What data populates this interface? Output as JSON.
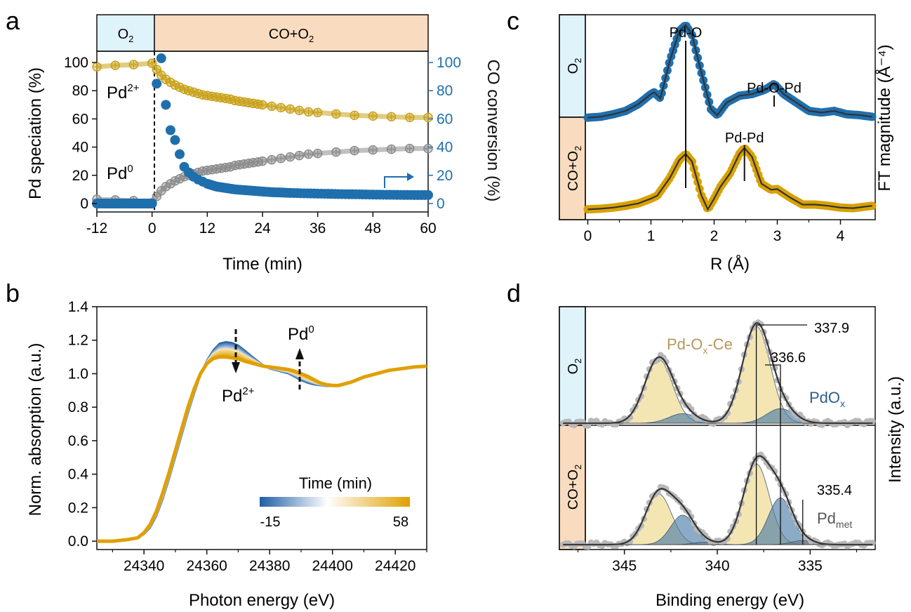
{
  "colors": {
    "o2_fill": "#dff3fb",
    "co_fill": "#f9dcbf",
    "pd2": "#c9a21c",
    "pd0": "#8c8c8c",
    "blue": "#1f6fad",
    "gold": "#d9a100",
    "fit": "#333333",
    "xps_gold": "#f2e2a6",
    "xps_blue": "#4e7ea8",
    "xps_data": "#b8b8b8",
    "cbar_low": "#1f5fa3",
    "cbar_mid": "#ffffff",
    "cbar_high": "#e0a000"
  },
  "chart_data": [
    {
      "panel": "a",
      "type": "line",
      "phase_labels": {
        "o2_main": "O",
        "o2_sub": "2",
        "co_main": "CO+O",
        "co_sub": "2"
      },
      "xlabel": "Time (min)",
      "ylabel_left": "Pd speciation (%)",
      "ylabel_right": "CO conversion (%)",
      "xlim": [
        -12,
        60
      ],
      "ylim_left": [
        -6,
        108
      ],
      "ylim_right": [
        -6,
        108
      ],
      "xticks": [
        -12,
        0,
        12,
        24,
        36,
        48,
        60
      ],
      "yticks_left": [
        0,
        20,
        40,
        60,
        80,
        100
      ],
      "yticks_right": [
        0,
        20,
        40,
        60,
        80,
        100
      ],
      "annotations": {
        "pd2_main": "Pd",
        "pd2_sup": "2+",
        "pd0_main": "Pd",
        "pd0_sup": "0"
      },
      "series": [
        {
          "name": "Pd2+",
          "axis": "left",
          "x": [
            -12,
            -8,
            -4,
            0,
            1,
            2,
            3,
            4,
            5,
            6,
            7,
            8,
            9,
            10,
            11,
            12,
            13,
            14,
            15,
            16,
            17,
            18,
            19,
            20,
            21,
            22,
            23,
            24,
            26,
            28,
            30,
            32,
            34,
            36,
            40,
            44,
            48,
            52,
            56,
            60
          ],
          "y": [
            97,
            98,
            98.5,
            99.5,
            95,
            91,
            88,
            86,
            84,
            82.5,
            81,
            80,
            79,
            78,
            77,
            76.5,
            76,
            75.5,
            75,
            74.5,
            74,
            73,
            72.5,
            72,
            71.5,
            71,
            70.5,
            70,
            69,
            68,
            67,
            66,
            65,
            64.5,
            63.5,
            62.5,
            62,
            61.5,
            61,
            61
          ]
        },
        {
          "name": "Pd0",
          "axis": "left",
          "x": [
            -12,
            -8,
            -4,
            0,
            1,
            2,
            3,
            4,
            5,
            6,
            7,
            8,
            9,
            10,
            11,
            12,
            13,
            14,
            15,
            16,
            17,
            18,
            19,
            20,
            21,
            22,
            23,
            24,
            26,
            28,
            30,
            32,
            34,
            36,
            40,
            44,
            48,
            52,
            56,
            60
          ],
          "y": [
            3,
            2.5,
            2,
            0.5,
            5,
            9,
            12,
            14,
            16,
            17.5,
            19,
            20,
            21,
            22,
            23,
            23.5,
            24,
            24.5,
            25,
            25.5,
            26,
            27,
            27.5,
            28,
            28.5,
            29,
            29.5,
            30,
            31,
            32,
            33,
            34,
            35,
            35.5,
            36.5,
            37.5,
            38,
            38.5,
            39,
            39
          ]
        },
        {
          "name": "CO conversion",
          "axis": "right",
          "x": [
            -12,
            -10,
            -8,
            -6,
            -4,
            -2,
            0,
            1,
            2,
            3,
            4,
            5,
            6,
            7,
            8,
            9,
            10,
            11,
            12,
            13,
            14,
            15,
            16,
            17,
            18,
            20,
            22,
            24,
            26,
            28,
            30,
            33,
            36,
            39,
            42,
            45,
            48,
            51,
            54,
            57,
            60
          ],
          "y": [
            0,
            0,
            0,
            0,
            0,
            0,
            0,
            85,
            103,
            70,
            52,
            45,
            35,
            26,
            22,
            19,
            17,
            15.5,
            14,
            13,
            12,
            11.5,
            11,
            10.5,
            10,
            9.5,
            9,
            8.5,
            8,
            7.8,
            7.5,
            7.2,
            7,
            6.8,
            6.6,
            6.5,
            6.3,
            6.2,
            6.1,
            6,
            6
          ]
        }
      ]
    },
    {
      "panel": "b",
      "type": "line",
      "xlabel": "Photon energy (eV)",
      "ylabel": "Norm. absorption (a.u.)",
      "xlim": [
        24325,
        24430
      ],
      "ylim": [
        -0.05,
        1.4
      ],
      "xticks": [
        24340,
        24360,
        24380,
        24400,
        24420
      ],
      "yticks": [
        0.0,
        0.2,
        0.4,
        0.6,
        0.8,
        1.0,
        1.2,
        1.4
      ],
      "ytick_labels": [
        "0.0",
        "0.2",
        "0.4",
        "0.6",
        "0.8",
        "1.0",
        "1.2",
        "1.4"
      ],
      "annotations": {
        "pd2_main": "Pd",
        "pd2_sup": "2+",
        "pd0_main": "Pd",
        "pd0_sup": "0"
      },
      "colorbar": {
        "title": "Time (min)",
        "min_label": "-15",
        "max_label": "58"
      },
      "spectrum_first": {
        "x": [
          24325,
          24330,
          24335,
          24338,
          24340,
          24342,
          24344,
          24346,
          24348,
          24350,
          24352,
          24354,
          24356,
          24358,
          24360,
          24362,
          24364,
          24366,
          24368,
          24370,
          24372,
          24374,
          24376,
          24378,
          24380,
          24382,
          24384,
          24386,
          24388,
          24390,
          24392,
          24394,
          24396,
          24398,
          24400,
          24402,
          24404,
          24406,
          24408,
          24410,
          24414,
          24418,
          24422,
          24426,
          24430
        ],
        "y": [
          0.0,
          0.0,
          0.01,
          0.02,
          0.04,
          0.08,
          0.15,
          0.25,
          0.37,
          0.5,
          0.63,
          0.76,
          0.88,
          0.99,
          1.08,
          1.14,
          1.18,
          1.19,
          1.185,
          1.17,
          1.14,
          1.11,
          1.08,
          1.05,
          1.03,
          1.02,
          1.01,
          1.0,
          0.98,
          0.96,
          0.945,
          0.935,
          0.93,
          0.925,
          0.925,
          0.93,
          0.94,
          0.95,
          0.965,
          0.98,
          1.0,
          1.02,
          1.03,
          1.04,
          1.045
        ]
      },
      "spectrum_last": {
        "x": [
          24325,
          24330,
          24335,
          24338,
          24340,
          24342,
          24344,
          24346,
          24348,
          24350,
          24352,
          24354,
          24356,
          24358,
          24360,
          24362,
          24364,
          24366,
          24368,
          24370,
          24372,
          24374,
          24376,
          24378,
          24380,
          24382,
          24384,
          24386,
          24388,
          24390,
          24392,
          24394,
          24396,
          24398,
          24400,
          24402,
          24404,
          24406,
          24408,
          24410,
          24414,
          24418,
          24422,
          24426,
          24430
        ],
        "y": [
          0.0,
          0.0,
          0.01,
          0.02,
          0.05,
          0.1,
          0.18,
          0.29,
          0.41,
          0.54,
          0.67,
          0.8,
          0.91,
          1.0,
          1.06,
          1.09,
          1.1,
          1.1,
          1.095,
          1.09,
          1.075,
          1.065,
          1.055,
          1.045,
          1.04,
          1.035,
          1.03,
          1.025,
          1.015,
          1.0,
          0.985,
          0.965,
          0.945,
          0.935,
          0.93,
          0.93,
          0.94,
          0.95,
          0.965,
          0.98,
          1.0,
          1.02,
          1.03,
          1.04,
          1.045
        ]
      }
    },
    {
      "panel": "c",
      "type": "line",
      "xlabel": "R (Å)",
      "ylabel": "FT magnitude (Å⁻⁴)",
      "xlim": [
        -0.45,
        4.55
      ],
      "xticks": [
        0,
        1,
        2,
        3,
        4
      ],
      "phase_labels": {
        "o2_main": "O",
        "o2_sub": "2",
        "co_main": "CO+O",
        "co_sub": "2"
      },
      "peak_labels": {
        "pdo": "Pd-O",
        "pdopd": "Pd-O-Pd",
        "pdpd": "Pd-Pd"
      },
      "peak_positions": {
        "pdo": 1.55,
        "pdopd": 2.95,
        "pdpd": 2.48
      },
      "series": [
        {
          "name": "O2",
          "x": [
            0,
            0.2,
            0.4,
            0.6,
            0.8,
            1.0,
            1.05,
            1.15,
            1.3,
            1.45,
            1.55,
            1.65,
            1.8,
            1.95,
            2.05,
            2.2,
            2.4,
            2.6,
            2.8,
            2.95,
            3.1,
            3.3,
            3.5,
            3.7,
            3.9,
            4.1,
            4.3,
            4.5
          ],
          "y": [
            0.02,
            0.03,
            0.06,
            0.1,
            0.18,
            0.3,
            0.32,
            0.25,
            0.7,
            1.05,
            1.12,
            1.0,
            0.55,
            0.12,
            0.05,
            0.2,
            0.28,
            0.3,
            0.35,
            0.42,
            0.3,
            0.2,
            0.1,
            0.08,
            0.1,
            0.06,
            0.05,
            0.03
          ]
        },
        {
          "name": "CO+O2",
          "x": [
            0,
            0.2,
            0.4,
            0.6,
            0.8,
            1.0,
            1.1,
            1.3,
            1.45,
            1.55,
            1.65,
            1.8,
            1.9,
            2.0,
            2.1,
            2.25,
            2.4,
            2.48,
            2.6,
            2.75,
            2.9,
            3.0,
            3.2,
            3.4,
            3.6,
            3.8,
            4.0,
            4.2,
            4.5
          ],
          "y": [
            0.02,
            0.03,
            0.05,
            0.08,
            0.12,
            0.2,
            0.25,
            0.55,
            0.85,
            0.95,
            0.82,
            0.25,
            0.02,
            0.2,
            0.4,
            0.62,
            0.95,
            1.05,
            0.9,
            0.45,
            0.35,
            0.36,
            0.22,
            0.1,
            0.1,
            0.08,
            0.05,
            0.04,
            0.08
          ]
        }
      ]
    },
    {
      "panel": "d",
      "type": "area",
      "xlabel": "Binding energy (eV)",
      "ylabel": "Intensity (a.u.)",
      "xlim": [
        348.5,
        331.5
      ],
      "xticks": [
        345,
        340,
        335
      ],
      "phase_labels": {
        "o2_main": "O",
        "o2_sub": "2",
        "co_main": "CO+O",
        "co_sub": "2"
      },
      "species_labels": {
        "pdoxce_a": "Pd-O",
        "pdoxce_sub": "x",
        "pdoxce_b": "-Ce",
        "pdox_main": "PdO",
        "pdox_sub": "x",
        "pdmet_main": "Pd",
        "pdmet_sub": "met"
      },
      "peak_values": {
        "p1": "337.9",
        "p2": "336.6",
        "p3": "335.4"
      },
      "components_o2": [
        {
          "name": "Pd-Ox-Ce",
          "center": 337.9,
          "amp": 1.0,
          "sigma": 0.75,
          "doublet_shift": 5.26,
          "doublet_ratio": 0.66
        },
        {
          "name": "PdOx",
          "center": 336.6,
          "amp": 0.15,
          "sigma": 0.75,
          "doublet_shift": 5.26,
          "doublet_ratio": 0.66
        }
      ],
      "components_co": [
        {
          "name": "Pd-Ox-Ce",
          "center": 337.9,
          "amp": 1.0,
          "sigma": 0.7,
          "doublet_shift": 5.26,
          "doublet_ratio": 0.63
        },
        {
          "name": "PdOx",
          "center": 336.6,
          "amp": 0.58,
          "sigma": 0.65,
          "doublet_shift": 5.26,
          "doublet_ratio": 0.63
        },
        {
          "name": "Pd met",
          "center": 335.4,
          "amp": 0.05,
          "sigma": 0.6,
          "doublet_shift": 5.26,
          "doublet_ratio": 0.63
        }
      ]
    }
  ],
  "panel_labels": {
    "a": "a",
    "b": "b",
    "c": "c",
    "d": "d"
  }
}
